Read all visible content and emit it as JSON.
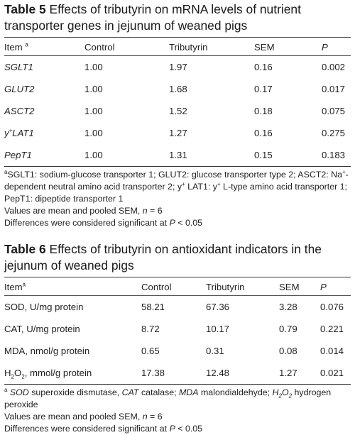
{
  "table5": {
    "label": "Table 5",
    "title": "Effects of tributyrin on mRNA levels of nutrient transporter genes in jejunum of weaned pigs",
    "headers": [
      "Item",
      "Control",
      "Tributyrin",
      "SEM",
      "P"
    ],
    "header_sup": "a",
    "rows": [
      {
        "item": "SGLT1",
        "control": "1.00",
        "tributyrin": "1.97",
        "sem": "0.16",
        "p": "0.002"
      },
      {
        "item": "GLUT2",
        "control": "1.00",
        "tributyrin": "1.68",
        "sem": "0.17",
        "p": "0.017"
      },
      {
        "item": "ASCT2",
        "control": "1.00",
        "tributyrin": "1.52",
        "sem": "0.18",
        "p": "0.075"
      },
      {
        "item_sup": "y",
        "item_sup_mark": "+",
        "item": "LAT1",
        "control": "1.00",
        "tributyrin": "1.27",
        "sem": "0.16",
        "p": "0.275"
      },
      {
        "item": "PepT1",
        "control": "1.00",
        "tributyrin": "1.31",
        "sem": "0.15",
        "p": "0.183"
      }
    ],
    "footnote_mark": "a",
    "footnote_parts": {
      "a": "SGLT1: sodium-glucose transporter 1; GLUT2: glucose transporter type 2; ASCT2: Na",
      "b": "-dependent neutral amino acid transporter 2; y",
      "c": " LAT1: y",
      "d": " L-type amino acid transporter 1; PepT1: dipeptide transporter 1",
      "plus": "+"
    },
    "note1_pre": "Values are mean and pooled SEM, ",
    "note1_n": "n",
    "note1_post": " = 6",
    "note2_pre": "Differences were considered significant at ",
    "note2_p": "P",
    "note2_post": " < 0.05"
  },
  "table6": {
    "label": "Table 6",
    "title": "Effects of tributyrin on antioxidant indicators in the jejunum of weaned pigs",
    "headers": [
      "Item",
      "Control",
      "Tributyrin",
      "SEM",
      "P"
    ],
    "header_sup": "a",
    "rows": [
      {
        "item": "SOD, U/mg protein",
        "control": "58.21",
        "tributyrin": "67.36",
        "sem": "3.28",
        "p": "0.076"
      },
      {
        "item": "CAT, U/mg protein",
        "control": "8.72",
        "tributyrin": "10.17",
        "sem": "0.79",
        "p": "0.221"
      },
      {
        "item": "MDA, nmol/g protein",
        "control": "0.65",
        "tributyrin": "0.31",
        "sem": "0.08",
        "p": "0.014"
      },
      {
        "item_h": "H",
        "item_sub": "2",
        "item_o": "O",
        "item_rest": ", mmol/g protein",
        "control": "17.38",
        "tributyrin": "12.48",
        "sem": "1.27",
        "p": "0.021"
      }
    ],
    "footnote_mark": "a",
    "fn": {
      "sod": "SOD",
      "sod_t": " superoxide dismutase, ",
      "cat": "CAT",
      "cat_t": " catalase; ",
      "mda": "MDA",
      "mda_t": " malondialdehyde; ",
      "h2o2_h": "H",
      "h2o2_2": "2",
      "h2o2_o": "O",
      "h2o2_t": " hydrogen peroxide"
    },
    "note1_pre": "Values are mean and pooled SEM, ",
    "note1_n": "n",
    "note1_post": " = 6",
    "note2_pre": "Differences were considered significant at ",
    "note2_p": "P",
    "note2_post": " < 0.05"
  }
}
